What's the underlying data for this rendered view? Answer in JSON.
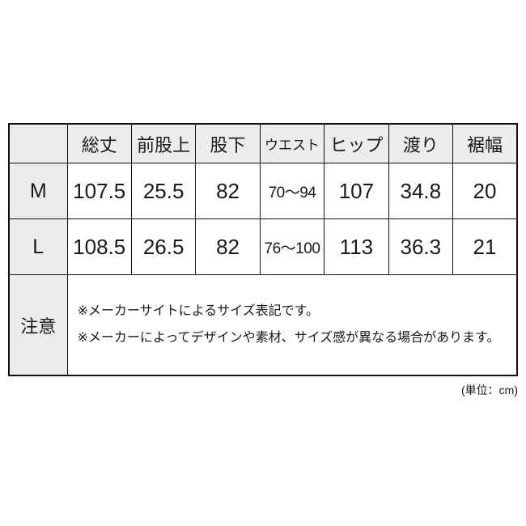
{
  "chart_data": {
    "type": "table",
    "title": "size-spec-table",
    "columns": [
      "",
      "総丈",
      "前股上",
      "股下",
      "ウエスト",
      "ヒップ",
      "渡り",
      "裾幅"
    ],
    "rows": [
      {
        "label": "M",
        "values": [
          "107.5",
          "25.5",
          "82",
          "70～94",
          "107",
          "34.8",
          "20"
        ]
      },
      {
        "label": "L",
        "values": [
          "108.5",
          "26.5",
          "82",
          "76～100",
          "113",
          "36.3",
          "21"
        ]
      }
    ],
    "note_row": {
      "label": "注意",
      "lines": [
        "※メーカーサイトによるサイズ表記です。",
        "※メーカーによってデザインや素材、サイズ感が異なる場合があります。"
      ]
    },
    "unit_label": "(単位：cm)"
  },
  "colors": {
    "header_bg": "#ececec",
    "border": "#111111",
    "text": "#1a1a1a",
    "cell_bg": "#ffffff"
  }
}
